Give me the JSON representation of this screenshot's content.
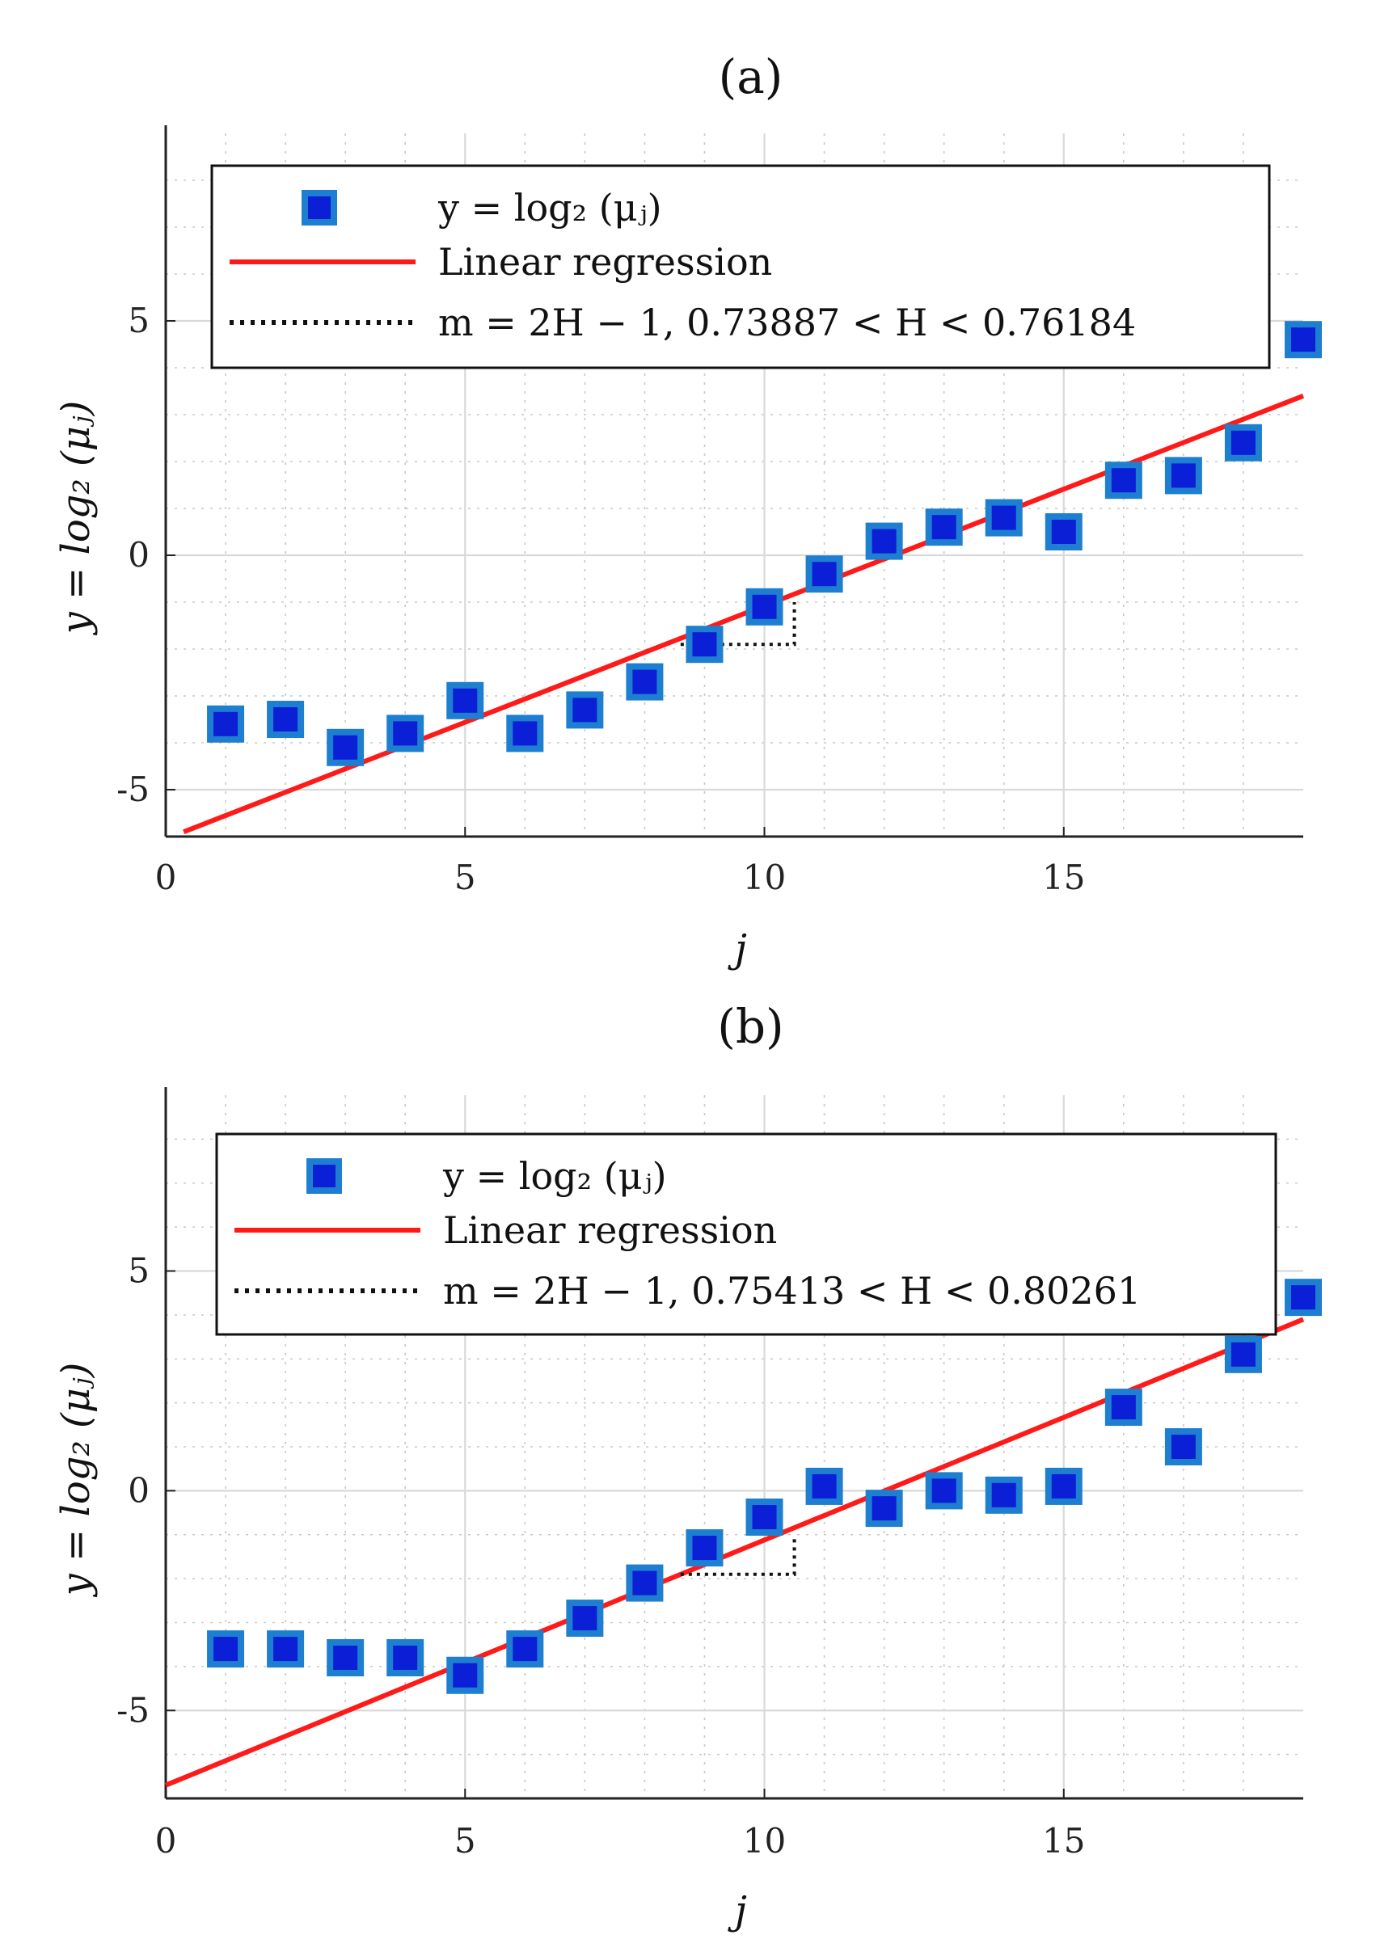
{
  "colors": {
    "marker_fill": "#0a1fd6",
    "marker_edge": "#1e7fd0",
    "regression": "#ff1a1a",
    "dotted": "#111111",
    "axis": "#222222"
  },
  "chart_data": [
    {
      "type": "scatter",
      "title": "(a)",
      "xlabel": "j",
      "ylabel": "y = log₂ (μⱼ)",
      "xlim": [
        0,
        19
      ],
      "ylim": [
        -6,
        9
      ],
      "x_ticks": [
        0,
        5,
        10,
        15
      ],
      "y_ticks": [
        -5,
        0,
        5
      ],
      "x_tick_labels": [
        "0",
        "5",
        "10",
        "15"
      ],
      "y_tick_labels": [
        "-5",
        "0",
        "5"
      ],
      "grid": true,
      "legend_position": "top",
      "legend": {
        "series": "y = log₂ (μⱼ)",
        "regression": "Linear regression",
        "slope": "m = 2H − 1, 0.73887 < H < 0.76184"
      },
      "x": [
        1,
        2,
        3,
        4,
        5,
        6,
        7,
        8,
        9,
        10,
        11,
        12,
        13,
        14,
        15,
        16,
        17,
        18,
        19
      ],
      "y": [
        -3.6,
        -3.5,
        -4.1,
        -3.8,
        -3.1,
        -3.8,
        -3.3,
        -2.7,
        -1.9,
        -1.1,
        -0.4,
        0.3,
        0.6,
        0.8,
        0.5,
        1.6,
        1.7,
        2.4,
        4.6
      ],
      "regression": {
        "x": [
          0.3,
          19
        ],
        "y": [
          -5.9,
          3.4
        ]
      },
      "slope_triangle": {
        "x": [
          8.6,
          10.5
        ],
        "y_low": -1.9,
        "y_high": -1.0
      }
    },
    {
      "type": "scatter",
      "title": "(b)",
      "xlabel": "j",
      "ylabel": "y = log₂ (μⱼ)",
      "xlim": [
        0,
        19
      ],
      "ylim": [
        -7,
        9
      ],
      "x_ticks": [
        0,
        5,
        10,
        15
      ],
      "y_ticks": [
        -5,
        0,
        5
      ],
      "x_tick_labels": [
        "0",
        "5",
        "10",
        "15"
      ],
      "y_tick_labels": [
        "-5",
        "0",
        "5"
      ],
      "grid": true,
      "legend_position": "top",
      "legend": {
        "series": "y = log₂ (μⱼ)",
        "regression": "Linear regression",
        "slope": "m = 2H − 1, 0.75413 < H < 0.80261"
      },
      "x": [
        1,
        2,
        3,
        4,
        5,
        6,
        7,
        8,
        9,
        10,
        11,
        12,
        13,
        14,
        15,
        16,
        17,
        18,
        19
      ],
      "y": [
        -3.6,
        -3.6,
        -3.8,
        -3.8,
        -4.2,
        -3.6,
        -2.9,
        -2.1,
        -1.3,
        -0.6,
        0.1,
        -0.4,
        0.0,
        -0.1,
        0.1,
        1.9,
        1.0,
        3.1,
        4.4
      ],
      "regression": {
        "x": [
          0,
          19
        ],
        "y": [
          -6.7,
          3.9
        ]
      },
      "slope_triangle": {
        "x": [
          8.6,
          10.5
        ],
        "y_low": -1.9,
        "y_high": -1.0
      }
    }
  ]
}
